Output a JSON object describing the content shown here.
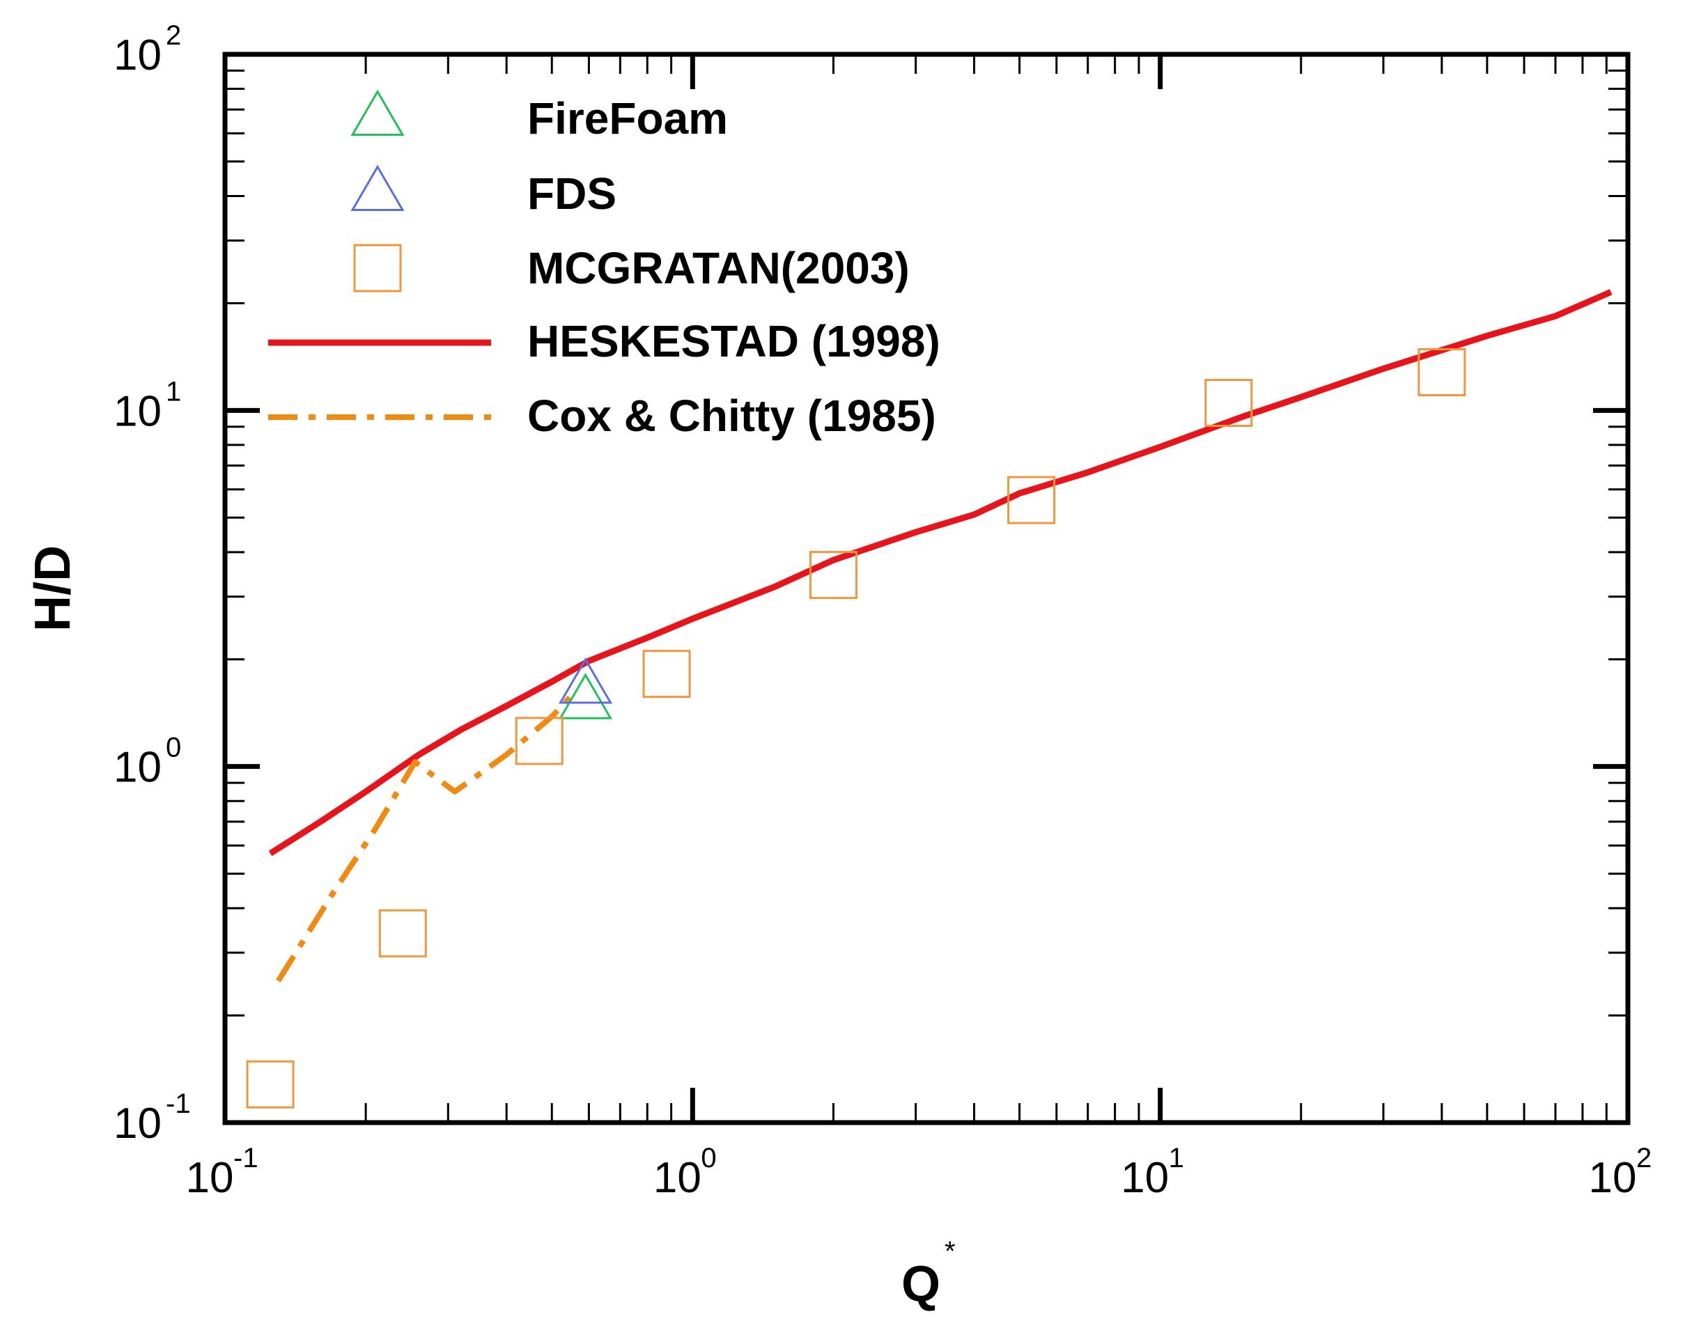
{
  "chart_data": {
    "type": "scatter",
    "title": "",
    "xlabel": "Q",
    "xlabel_superscript": "*",
    "ylabel": "H/D",
    "xscale": "log",
    "yscale": "log",
    "xlim": [
      0.1,
      100
    ],
    "ylim": [
      0.1,
      100
    ],
    "x_ticks": [
      {
        "value": 0.1,
        "base": "10",
        "exp": "-1"
      },
      {
        "value": 1,
        "base": "10",
        "exp": "0"
      },
      {
        "value": 10,
        "base": "10",
        "exp": "1"
      },
      {
        "value": 100,
        "base": "10",
        "exp": "2"
      }
    ],
    "y_ticks": [
      {
        "value": 0.1,
        "base": "10",
        "exp": "-1"
      },
      {
        "value": 1,
        "base": "10",
        "exp": "0"
      },
      {
        "value": 10,
        "base": "10",
        "exp": "1"
      },
      {
        "value": 100,
        "base": "10",
        "exp": "2"
      }
    ],
    "legend_position": "top-left",
    "series": [
      {
        "name": "FireFoam",
        "kind": "marker",
        "marker": "triangle",
        "color": "#22c25a",
        "points": [
          [
            0.59,
            1.52
          ]
        ]
      },
      {
        "name": "FDS",
        "kind": "marker",
        "marker": "triangle",
        "color": "#5a6fe0",
        "points": [
          [
            0.59,
            1.68
          ]
        ]
      },
      {
        "name": "MCGRATAN(2003)",
        "kind": "marker",
        "marker": "square",
        "color": "#f0963c",
        "points": [
          [
            0.125,
            0.128
          ],
          [
            0.24,
            0.34
          ],
          [
            0.47,
            1.18
          ],
          [
            0.88,
            1.82
          ],
          [
            2.0,
            3.45
          ],
          [
            5.3,
            5.6
          ],
          [
            14.0,
            10.5
          ],
          [
            40.0,
            12.8
          ]
        ]
      },
      {
        "name": "HESKESTAD (1998)",
        "kind": "line",
        "style": "solid",
        "color": "#e8141c",
        "points": [
          [
            0.125,
            0.57
          ],
          [
            0.16,
            0.7
          ],
          [
            0.2,
            0.85
          ],
          [
            0.26,
            1.08
          ],
          [
            0.32,
            1.27
          ],
          [
            0.4,
            1.48
          ],
          [
            0.5,
            1.73
          ],
          [
            0.6,
            1.98
          ],
          [
            0.8,
            2.3
          ],
          [
            1.0,
            2.6
          ],
          [
            1.5,
            3.2
          ],
          [
            2.0,
            3.8
          ],
          [
            3.0,
            4.55
          ],
          [
            4.0,
            5.1
          ],
          [
            5.0,
            5.85
          ],
          [
            7.0,
            6.7
          ],
          [
            10.0,
            7.9
          ],
          [
            15.0,
            9.6
          ],
          [
            20.0,
            10.9
          ],
          [
            30.0,
            13.1
          ],
          [
            50.0,
            16.2
          ],
          [
            70.0,
            18.4
          ],
          [
            92.0,
            21.5
          ]
        ]
      },
      {
        "name": "Cox & Chitty (1985)",
        "kind": "line",
        "style": "dashdot",
        "color": "#f08a10",
        "points": [
          [
            0.13,
            0.25
          ],
          [
            0.17,
            0.44
          ],
          [
            0.21,
            0.67
          ],
          [
            0.255,
            1.03
          ],
          [
            0.31,
            0.85
          ],
          [
            0.4,
            1.08
          ],
          [
            0.5,
            1.38
          ],
          [
            0.56,
            1.62
          ]
        ]
      }
    ]
  }
}
